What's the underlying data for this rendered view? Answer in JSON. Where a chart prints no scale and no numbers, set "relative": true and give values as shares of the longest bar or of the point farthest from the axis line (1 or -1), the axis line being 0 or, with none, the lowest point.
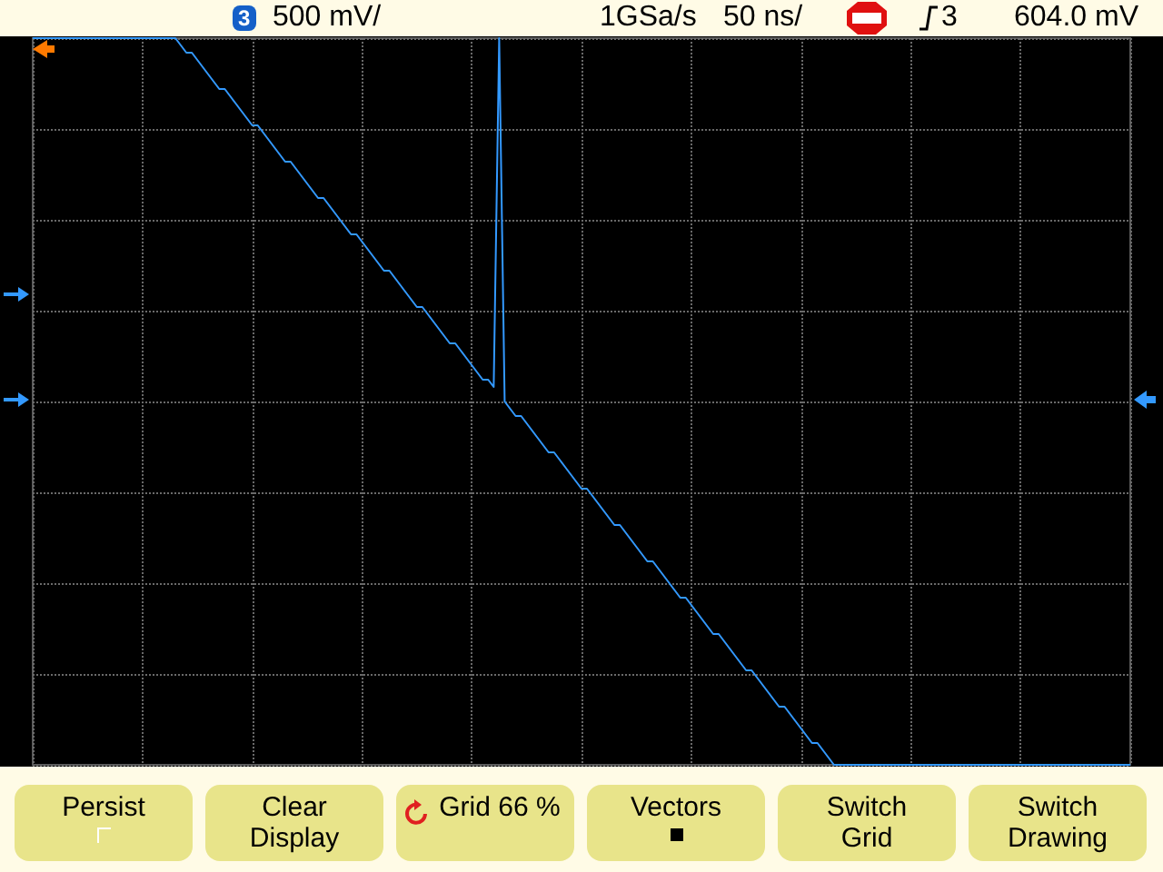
{
  "chart_data": {
    "type": "line",
    "relative": true,
    "grid": true,
    "line_style": "solid",
    "categories": [
      null,
      null,
      null,
      null,
      null,
      null,
      null,
      null,
      null,
      null,
      null,
      null,
      null,
      null,
      null,
      null,
      null,
      null,
      null,
      null,
      null,
      null,
      null,
      null,
      null,
      null,
      null,
      null,
      null,
      null,
      null,
      null,
      null,
      null,
      null,
      null,
      null,
      null,
      null,
      null,
      null,
      null,
      null,
      null,
      null,
      null,
      null,
      null,
      null,
      null,
      null,
      null,
      null,
      null,
      null,
      null,
      null,
      null,
      null,
      null,
      null,
      null,
      null,
      null,
      null,
      null,
      null,
      null,
      null,
      null,
      null,
      null,
      null,
      null,
      null,
      null,
      null,
      null,
      null,
      null,
      null,
      null,
      null,
      null,
      null,
      null,
      null,
      null,
      null,
      null,
      null,
      null,
      null,
      null,
      null,
      null,
      null,
      null,
      null,
      null,
      null,
      null,
      null,
      null,
      null,
      null,
      null,
      null,
      null,
      null,
      null,
      null,
      null,
      null,
      null,
      null,
      null,
      null,
      null,
      null,
      null,
      null,
      null,
      null,
      null,
      null,
      null,
      null,
      null,
      null,
      null,
      null,
      null,
      null,
      null,
      null,
      null,
      null,
      null,
      null,
      null,
      null,
      null,
      null,
      null,
      null,
      null,
      null,
      null,
      null,
      null,
      null,
      null,
      null,
      null,
      null,
      null,
      null,
      null,
      null,
      null,
      null,
      null,
      null,
      null,
      null,
      null,
      null,
      null,
      null,
      null,
      null,
      null,
      null,
      null,
      null,
      null,
      null,
      null,
      null,
      null,
      null,
      null,
      null,
      null,
      null,
      null,
      null,
      null,
      null,
      null,
      null,
      null,
      null,
      null,
      null,
      null,
      null,
      null,
      null,
      null
    ],
    "series": [
      {
        "color": "#3399ff",
        "values": [
          1,
          1,
          1,
          1,
          1,
          1,
          1,
          1,
          1,
          1,
          1,
          1,
          1,
          1,
          1,
          1,
          1,
          1,
          1,
          1,
          1,
          1,
          1,
          1,
          1,
          1,
          1,
          0.99,
          0.98,
          0.98,
          0.97,
          0.96,
          0.95,
          0.94,
          0.93,
          0.93,
          0.92,
          0.91,
          0.9,
          0.89,
          0.88,
          0.88,
          0.87,
          0.86,
          0.85,
          0.84,
          0.83,
          0.83,
          0.82,
          0.81,
          0.8,
          0.79,
          0.78,
          0.78,
          0.77,
          0.76,
          0.75,
          0.74,
          0.73,
          0.73,
          0.72,
          0.71,
          0.7,
          0.69,
          0.68,
          0.68,
          0.67,
          0.66,
          0.65,
          0.64,
          0.63,
          0.63,
          0.62,
          0.61,
          0.6,
          0.59,
          0.58,
          0.58,
          0.57,
          0.56,
          0.55,
          0.54,
          0.53,
          0.53,
          0.52,
          1,
          0.5,
          0.49,
          0.48,
          0.48,
          0.47,
          0.46,
          0.45,
          0.44,
          0.43,
          0.43,
          0.42,
          0.41,
          0.4,
          0.39,
          0.38,
          0.38,
          0.37,
          0.36,
          0.35,
          0.34,
          0.33,
          0.33,
          0.32,
          0.31,
          0.3,
          0.29,
          0.28,
          0.28,
          0.27,
          0.26,
          0.25,
          0.24,
          0.23,
          0.23,
          0.22,
          0.21,
          0.2,
          0.19,
          0.18,
          0.18,
          0.17,
          0.16,
          0.15,
          0.14,
          0.13,
          0.13,
          0.12,
          0.11,
          0.1,
          0.09,
          0.08,
          0.08,
          0.07,
          0.06,
          0.05,
          0.04,
          0.03,
          0.03,
          0.02,
          0.01,
          0,
          0,
          0,
          0,
          0,
          0,
          0,
          0,
          0,
          0,
          0,
          0,
          0,
          0,
          0,
          0,
          0,
          0,
          0,
          0,
          0,
          0,
          0,
          0,
          0,
          0,
          0,
          0,
          0,
          0,
          0,
          0,
          0,
          0,
          0,
          0,
          0,
          0,
          0,
          0,
          0,
          0,
          0,
          0,
          0,
          0,
          0,
          0,
          0,
          0,
          0,
          0,
          0,
          0,
          0
        ]
      }
    ],
    "annotations": [
      "3",
      "500 mV/",
      "1GSa/s",
      "50 ns/",
      "3",
      "604.0 mV",
      "Persist",
      "Clear Display",
      "Grid 66 %",
      "Vectors",
      "Switch Grid",
      "Switch Drawing"
    ]
  }
}
